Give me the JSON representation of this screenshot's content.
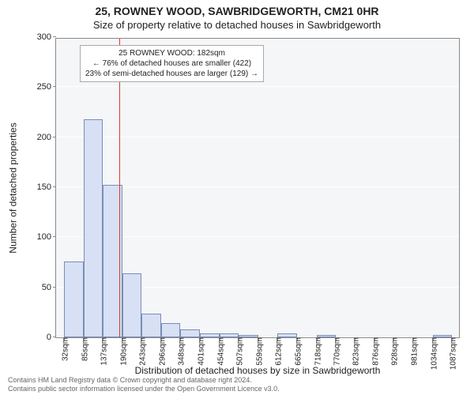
{
  "chart": {
    "type": "histogram",
    "title_main": "25, ROWNEY WOOD, SAWBRIDGEWORTH, CM21 0HR",
    "title_sub": "Size of property relative to detached houses in Sawbridgeworth",
    "y_label": "Number of detached properties",
    "x_label": "Distribution of detached houses by size in Sawbridgeworth",
    "background_color": "#f5f6f8",
    "grid_color": "#ffffff",
    "axis_color": "#888888",
    "bar_fill": "#d7e0f4",
    "bar_edge": "#7a8db8",
    "title_fontsize": 14,
    "label_fontsize": 12,
    "tick_fontsize": 10,
    "y": {
      "min": 0,
      "max": 300,
      "ticks": [
        0,
        50,
        100,
        150,
        200,
        250,
        300
      ]
    },
    "x_ticks": [
      {
        "pos": 32,
        "label": "32sqm"
      },
      {
        "pos": 85,
        "label": "85sqm"
      },
      {
        "pos": 137,
        "label": "137sqm"
      },
      {
        "pos": 190,
        "label": "190sqm"
      },
      {
        "pos": 243,
        "label": "243sqm"
      },
      {
        "pos": 296,
        "label": "296sqm"
      },
      {
        "pos": 348,
        "label": "348sqm"
      },
      {
        "pos": 401,
        "label": "401sqm"
      },
      {
        "pos": 454,
        "label": "454sqm"
      },
      {
        "pos": 507,
        "label": "507sqm"
      },
      {
        "pos": 559,
        "label": "559sqm"
      },
      {
        "pos": 612,
        "label": "612sqm"
      },
      {
        "pos": 665,
        "label": "665sqm"
      },
      {
        "pos": 718,
        "label": "718sqm"
      },
      {
        "pos": 770,
        "label": "770sqm"
      },
      {
        "pos": 823,
        "label": "823sqm"
      },
      {
        "pos": 876,
        "label": "876sqm"
      },
      {
        "pos": 928,
        "label": "928sqm"
      },
      {
        "pos": 981,
        "label": "981sqm"
      },
      {
        "pos": 1034,
        "label": "1034sqm"
      },
      {
        "pos": 1087,
        "label": "1087sqm"
      }
    ],
    "x": {
      "min": 10,
      "max": 1110
    },
    "bars": [
      {
        "x0": 32,
        "x1": 85,
        "y": 76
      },
      {
        "x0": 85,
        "x1": 137,
        "y": 218
      },
      {
        "x0": 137,
        "x1": 190,
        "y": 152
      },
      {
        "x0": 190,
        "x1": 243,
        "y": 64
      },
      {
        "x0": 243,
        "x1": 296,
        "y": 24
      },
      {
        "x0": 296,
        "x1": 348,
        "y": 14
      },
      {
        "x0": 348,
        "x1": 401,
        "y": 8
      },
      {
        "x0": 401,
        "x1": 454,
        "y": 4
      },
      {
        "x0": 454,
        "x1": 507,
        "y": 4
      },
      {
        "x0": 507,
        "x1": 559,
        "y": 2
      },
      {
        "x0": 559,
        "x1": 612,
        "y": 0
      },
      {
        "x0": 612,
        "x1": 665,
        "y": 4
      },
      {
        "x0": 665,
        "x1": 718,
        "y": 0
      },
      {
        "x0": 718,
        "x1": 770,
        "y": 2
      },
      {
        "x0": 770,
        "x1": 823,
        "y": 0
      },
      {
        "x0": 823,
        "x1": 876,
        "y": 0
      },
      {
        "x0": 876,
        "x1": 928,
        "y": 0
      },
      {
        "x0": 928,
        "x1": 981,
        "y": 0
      },
      {
        "x0": 981,
        "x1": 1034,
        "y": 0
      },
      {
        "x0": 1034,
        "x1": 1087,
        "y": 2
      }
    ],
    "ref_line": {
      "x": 182,
      "color": "#d63a2f",
      "width": 1
    },
    "annotation": {
      "line1": "25 ROWNEY WOOD: 182sqm",
      "line2": "← 76% of detached houses are smaller (422)",
      "line3": "23% of semi-detached houses are larger (129) →",
      "box_border": "#aaaaaa",
      "box_bg": "#ffffff",
      "fontsize": 10
    },
    "footer": {
      "line1": "Contains HM Land Registry data © Crown copyright and database right 2024.",
      "line2": "Contains public sector information licensed under the Open Government Licence v3.0."
    }
  }
}
